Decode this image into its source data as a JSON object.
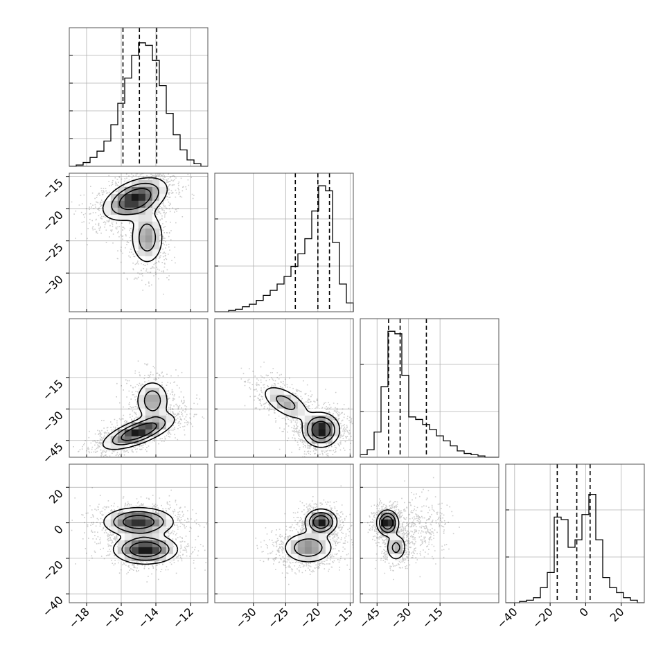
{
  "chart_data": {
    "type": "corner",
    "title": "",
    "parameters": [
      {
        "range": [
          -19,
          -11.0
        ],
        "ticks": [
          -18,
          -16,
          -14,
          -12
        ],
        "tick_labels": [
          "−18",
          "−16",
          "−14",
          "−12"
        ],
        "quantiles": [
          -15.9,
          -14.95,
          -13.95
        ],
        "hist_ymax": 1.0,
        "hist_yticks": [
          0.2,
          0.4,
          0.6,
          0.8
        ],
        "hist_edges": [
          -19.0,
          -18.6,
          -18.2,
          -17.8,
          -17.4,
          -17.0,
          -16.6,
          -16.2,
          -15.8,
          -15.4,
          -15.0,
          -14.6,
          -14.2,
          -13.8,
          -13.4,
          -13.0,
          -12.6,
          -12.2,
          -11.8,
          -11.4,
          -11.0
        ],
        "hist_counts": [
          0.0,
          0.01,
          0.03,
          0.07,
          0.12,
          0.2,
          0.33,
          0.5,
          0.7,
          0.88,
          0.98,
          0.96,
          0.84,
          0.64,
          0.42,
          0.25,
          0.13,
          0.05,
          0.02,
          0.0
        ]
      },
      {
        "range": [
          -36,
          -14.5
        ],
        "ticks": [
          -30,
          -25,
          -20,
          -15
        ],
        "tick_labels": [
          "−30",
          "−25",
          "−20",
          "−15"
        ],
        "y_ticks": [
          -15,
          -20,
          -25,
          -30
        ],
        "y_tick_labels": [
          "−15",
          "−20",
          "−25",
          "−30"
        ],
        "quantiles": [
          -23.5,
          -20.0,
          -18.2
        ],
        "hist_ymax": 1.0,
        "hist_yticks": [
          0.33,
          0.67
        ],
        "hist_edges": [
          -36.0,
          -34.925,
          -33.85,
          -32.775,
          -31.7,
          -30.625,
          -29.55,
          -28.475,
          -27.4,
          -26.325,
          -25.25,
          -24.175,
          -23.1,
          -22.025,
          -20.95,
          -19.875,
          -18.8,
          -17.725,
          -16.65,
          -15.575,
          -14.5
        ],
        "hist_counts": [
          0.0,
          0.0,
          0.01,
          0.02,
          0.04,
          0.06,
          0.09,
          0.13,
          0.17,
          0.22,
          0.28,
          0.36,
          0.46,
          0.58,
          0.8,
          1.0,
          0.96,
          0.55,
          0.22,
          0.07
        ]
      },
      {
        "range": [
          -53,
          13
        ],
        "ticks": [
          -45,
          -30,
          -15
        ],
        "tick_labels": [
          "−45",
          "−30",
          "−15"
        ],
        "y_ticks": [
          -15,
          -30,
          -45
        ],
        "y_tick_labels": [
          "−15",
          "−30",
          "−45"
        ],
        "quantiles": [
          -39.5,
          -34.0,
          -21.5
        ],
        "hist_ymax": 1.0,
        "hist_yticks": [
          0.33,
          0.67
        ],
        "hist_edges": [
          -53.0,
          -49.7,
          -46.4,
          -43.1,
          -39.8,
          -36.5,
          -33.2,
          -29.9,
          -26.6,
          -23.3,
          -20.0,
          -16.7,
          -13.4,
          -10.1,
          -6.8,
          -3.5,
          -0.2,
          3.1,
          6.4,
          9.7,
          13.0
        ],
        "hist_counts": [
          0.02,
          0.06,
          0.2,
          0.56,
          1.0,
          0.98,
          0.65,
          0.32,
          0.3,
          0.26,
          0.22,
          0.17,
          0.13,
          0.09,
          0.05,
          0.03,
          0.02,
          0.01,
          0.0,
          0.0
        ]
      },
      {
        "range": [
          -45,
          33
        ],
        "ticks": [
          -40,
          -20,
          0,
          20
        ],
        "tick_labels": [
          "−40",
          "−20",
          "0",
          "20"
        ],
        "y_ticks": [
          20,
          0,
          -20,
          -40
        ],
        "y_tick_labels": [
          "20",
          "0",
          "−20",
          "−40"
        ],
        "quantiles": [
          -16.0,
          -5.0,
          2.5
        ],
        "hist_ymax": 1.0,
        "hist_yticks": [
          0.33,
          0.67
        ],
        "hist_edges": [
          -45.0,
          -41.1,
          -37.2,
          -33.3,
          -29.4,
          -25.5,
          -21.6,
          -17.7,
          -13.8,
          -9.9,
          -6.0,
          -2.1,
          1.8,
          5.7,
          9.6,
          13.5,
          17.4,
          21.3,
          25.2,
          29.1,
          33.0
        ],
        "hist_counts": [
          0.0,
          0.0,
          0.01,
          0.02,
          0.04,
          0.12,
          0.24,
          0.68,
          0.66,
          0.44,
          0.5,
          0.7,
          0.86,
          0.5,
          0.2,
          0.12,
          0.08,
          0.04,
          0.02,
          0.0
        ]
      }
    ],
    "joint_panels": [
      {
        "row": 1,
        "col": 0,
        "modes": [
          {
            "mx": -15.2,
            "my": -18.5,
            "sx": 0.9,
            "sy": 1.6,
            "rho": 0.45,
            "w": 0.7
          },
          {
            "mx": -14.5,
            "my": -24.5,
            "sx": 0.5,
            "sy": 2.2,
            "rho": 0.0,
            "w": 0.3
          }
        ]
      },
      {
        "row": 2,
        "col": 0,
        "modes": [
          {
            "mx": -15.0,
            "my": -41.0,
            "sx": 1.0,
            "sy": 4.0,
            "rho": 0.7,
            "w": 0.7
          },
          {
            "mx": -14.2,
            "my": -26.0,
            "sx": 0.5,
            "sy": 5.0,
            "rho": 0.0,
            "w": 0.3
          }
        ]
      },
      {
        "row": 2,
        "col": 1,
        "modes": [
          {
            "mx": -19.5,
            "my": -40.0,
            "sx": 1.4,
            "sy": 4.0,
            "rho": 0.0,
            "w": 0.65
          },
          {
            "mx": -25.0,
            "my": -27.0,
            "sx": 2.0,
            "sy": 4.5,
            "rho": -0.6,
            "w": 0.35
          }
        ]
      },
      {
        "row": 3,
        "col": 0,
        "modes": [
          {
            "mx": -15.0,
            "my": 0.5,
            "sx": 1.0,
            "sy": 4.0,
            "rho": 0.0,
            "w": 0.5
          },
          {
            "mx": -14.6,
            "my": -15.0,
            "sx": 0.9,
            "sy": 4.0,
            "rho": 0.0,
            "w": 0.5
          }
        ]
      },
      {
        "row": 3,
        "col": 1,
        "modes": [
          {
            "mx": -19.5,
            "my": 0.5,
            "sx": 1.2,
            "sy": 3.5,
            "rho": 0.0,
            "w": 0.45
          },
          {
            "mx": -21.5,
            "my": -14.0,
            "sx": 2.0,
            "sy": 4.5,
            "rho": 0.0,
            "w": 0.55
          }
        ]
      },
      {
        "row": 3,
        "col": 2,
        "modes": [
          {
            "mx": -40.0,
            "my": 0.0,
            "sx": 2.5,
            "sy": 3.5,
            "rho": 0.0,
            "w": 0.55
          },
          {
            "mx": -36.0,
            "my": -14.0,
            "sx": 2.5,
            "sy": 4.0,
            "rho": 0.0,
            "w": 0.25
          },
          {
            "mx": -25.0,
            "my": -4.0,
            "sx": 5.0,
            "sy": 7.0,
            "rho": 0.2,
            "w": 0.2
          }
        ]
      }
    ]
  }
}
